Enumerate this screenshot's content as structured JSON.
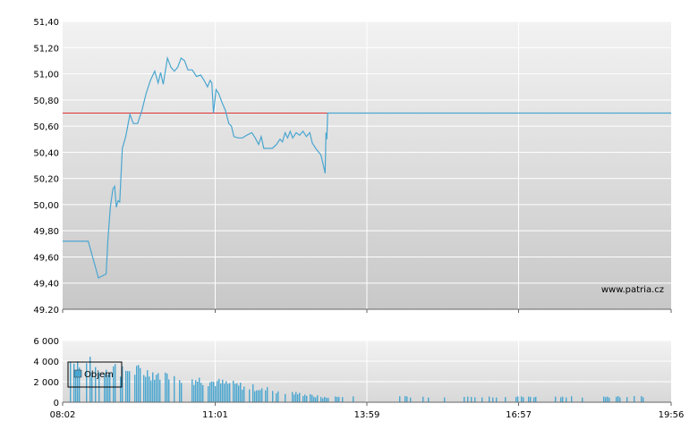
{
  "price_chart": {
    "y_ticks": [
      "51,40",
      "51,20",
      "51,00",
      "50,80",
      "50,60",
      "50,40",
      "50,20",
      "50,00",
      "49,80",
      "49,60",
      "49,40",
      "49.20"
    ],
    "ylim": [
      49.2,
      51.4
    ],
    "reference_line": {
      "value": 50.7,
      "color": "#e03030"
    },
    "line_color": "#4aa6d0",
    "watermark": "www.patria.cz",
    "series": [
      [
        "08:02",
        49.72
      ],
      [
        "08:32",
        49.72
      ],
      [
        "08:44",
        49.44
      ],
      [
        "08:53",
        49.47
      ],
      [
        "08:55",
        49.72
      ],
      [
        "08:58",
        49.98
      ],
      [
        "09:01",
        50.12
      ],
      [
        "09:03",
        50.14
      ],
      [
        "09:05",
        49.98
      ],
      [
        "09:07",
        50.03
      ],
      [
        "09:09",
        50.02
      ],
      [
        "09:12",
        50.43
      ],
      [
        "09:16",
        50.52
      ],
      [
        "09:21",
        50.69
      ],
      [
        "09:25",
        50.62
      ],
      [
        "09:30",
        50.62
      ],
      [
        "09:35",
        50.72
      ],
      [
        "09:40",
        50.85
      ],
      [
        "09:45",
        50.95
      ],
      [
        "09:50",
        51.02
      ],
      [
        "09:54",
        50.93
      ],
      [
        "09:57",
        51.01
      ],
      [
        "10:00",
        50.92
      ],
      [
        "10:05",
        51.12
      ],
      [
        "10:09",
        51.05
      ],
      [
        "10:13",
        51.02
      ],
      [
        "10:17",
        51.05
      ],
      [
        "10:21",
        51.12
      ],
      [
        "10:25",
        51.1
      ],
      [
        "10:29",
        51.03
      ],
      [
        "10:34",
        51.03
      ],
      [
        "10:39",
        50.98
      ],
      [
        "10:44",
        50.99
      ],
      [
        "10:48",
        50.95
      ],
      [
        "10:52",
        50.9
      ],
      [
        "10:55",
        50.95
      ],
      [
        "10:57",
        50.93
      ],
      [
        "10:59",
        50.7
      ],
      [
        "11:02",
        50.88
      ],
      [
        "11:05",
        50.85
      ],
      [
        "11:09",
        50.78
      ],
      [
        "11:13",
        50.72
      ],
      [
        "11:17",
        50.62
      ],
      [
        "11:20",
        50.6
      ],
      [
        "11:23",
        50.52
      ],
      [
        "11:28",
        50.51
      ],
      [
        "11:33",
        50.51
      ],
      [
        "11:38",
        50.53
      ],
      [
        "11:44",
        50.55
      ],
      [
        "11:48",
        50.51
      ],
      [
        "11:52",
        50.46
      ],
      [
        "11:55",
        50.52
      ],
      [
        "11:58",
        50.43
      ],
      [
        "12:03",
        50.43
      ],
      [
        "12:08",
        50.43
      ],
      [
        "12:13",
        50.46
      ],
      [
        "12:17",
        50.5
      ],
      [
        "12:20",
        50.48
      ],
      [
        "12:23",
        50.55
      ],
      [
        "12:26",
        50.51
      ],
      [
        "12:29",
        50.56
      ],
      [
        "12:32",
        50.51
      ],
      [
        "12:36",
        50.55
      ],
      [
        "12:40",
        50.53
      ],
      [
        "12:44",
        50.56
      ],
      [
        "12:48",
        50.52
      ],
      [
        "12:52",
        50.55
      ],
      [
        "12:55",
        50.47
      ],
      [
        "13:00",
        50.42
      ],
      [
        "13:05",
        50.38
      ],
      [
        "13:08",
        50.3
      ],
      [
        "13:10",
        50.24
      ],
      [
        "13:11",
        50.55
      ],
      [
        "13:12",
        50.5
      ],
      [
        "13:13",
        50.7
      ],
      [
        "19:56",
        50.7
      ]
    ]
  },
  "volume_chart": {
    "y_ticks": [
      "6 000",
      "4 000",
      "2 000",
      "0"
    ],
    "ylim": [
      0,
      6000
    ],
    "bar_color": "#4aa6d0",
    "legend_label": "Objem"
  },
  "x_ticks": [
    "08:02",
    "11:01",
    "13:59",
    "16:57",
    "19:56"
  ],
  "chart_data": {
    "type": "line",
    "xlabel": "",
    "ylabel": "",
    "x_range": [
      "08:02",
      "19:56"
    ],
    "grid": true
  }
}
